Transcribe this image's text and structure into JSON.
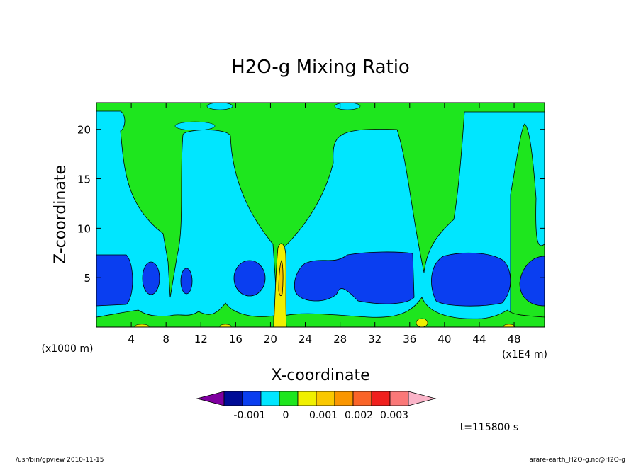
{
  "chart_data": {
    "type": "heatmap",
    "title": "H2O-g Mixing Ratio",
    "xlabel": "X-coordinate",
    "ylabel": "Z-coordinate",
    "x_unit_label": "(x1E4 m)",
    "y_unit_label": "(x1000 m)",
    "xlim": [
      0,
      51.5
    ],
    "ylim": [
      0,
      22.7
    ],
    "x_ticks": [
      4,
      8,
      12,
      16,
      20,
      24,
      28,
      32,
      36,
      40,
      44,
      48
    ],
    "y_ticks": [
      5,
      10,
      15,
      20
    ],
    "time_label": "t=115800 s",
    "colorbar": {
      "colors": [
        "#7f00a0",
        "#000c96",
        "#0a3ef0",
        "#00e6ff",
        "#1ee61e",
        "#f0f000",
        "#fac800",
        "#fa9600",
        "#fa6428",
        "#f0201e",
        "#fa7878",
        "#fab4c8"
      ],
      "tick_labels": [
        "-0.001",
        "0",
        "0.001",
        "0.002",
        "0.003"
      ]
    },
    "levels_fill": {
      "dark_blue": "#0a3ef0",
      "cyan": "#00e6ff",
      "green": "#1ee61e",
      "yellow": "#f0f000",
      "orange": "#fac800"
    },
    "features": [
      {
        "region": "upper background",
        "level": "green"
      },
      {
        "region": "mid-level band",
        "level": "cyan"
      },
      {
        "region": "low-level cells",
        "level": "dark_blue"
      },
      {
        "region": "plume at x≈21",
        "level": "yellow"
      }
    ]
  },
  "footer": {
    "left": "/usr/bin/gpview   2010-11-15",
    "right": "arare-earth_H2O-g.nc@H2O-g"
  }
}
